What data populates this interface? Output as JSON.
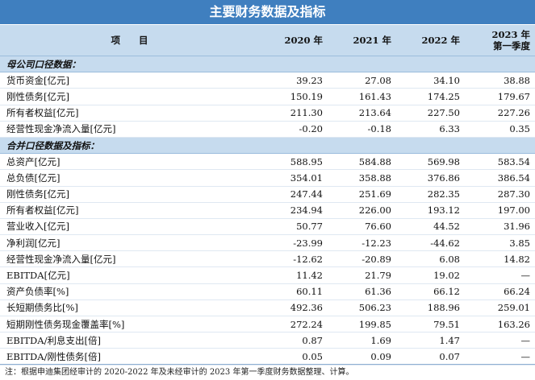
{
  "title": "主要财务数据及指标",
  "header": {
    "item": "项　　目",
    "cols": [
      "2020 年",
      "2021 年",
      "2022 年"
    ],
    "col4_line1": "2023 年",
    "col4_line2": "第一季度"
  },
  "section1": {
    "label": "母公司口径数据：",
    "rows": [
      {
        "label": "货币资金[亿元]",
        "v": [
          "39.23",
          "27.08",
          "34.10",
          "38.88"
        ]
      },
      {
        "label": "刚性债务[亿元]",
        "v": [
          "150.19",
          "161.43",
          "174.25",
          "179.67"
        ]
      },
      {
        "label": "所有者权益[亿元]",
        "v": [
          "211.30",
          "213.64",
          "227.50",
          "227.26"
        ]
      },
      {
        "label": "经营性现金净流入量[亿元]",
        "v": [
          "-0.20",
          "-0.18",
          "6.33",
          "0.35"
        ]
      }
    ]
  },
  "section2": {
    "label": "合并口径数据及指标：",
    "rows": [
      {
        "label": "总资产[亿元]",
        "v": [
          "588.95",
          "584.88",
          "569.98",
          "583.54"
        ]
      },
      {
        "label": "总负债[亿元]",
        "v": [
          "354.01",
          "358.88",
          "376.86",
          "386.54"
        ]
      },
      {
        "label": "刚性债务[亿元]",
        "v": [
          "247.44",
          "251.69",
          "282.35",
          "287.30"
        ]
      },
      {
        "label": "所有者权益[亿元]",
        "v": [
          "234.94",
          "226.00",
          "193.12",
          "197.00"
        ]
      },
      {
        "label": "营业收入[亿元]",
        "v": [
          "50.77",
          "76.60",
          "44.52",
          "31.96"
        ]
      },
      {
        "label": "净利润[亿元]",
        "v": [
          "-23.99",
          "-12.23",
          "-44.62",
          "3.85"
        ]
      },
      {
        "label": "经营性现金净流入量[亿元]",
        "v": [
          "-12.62",
          "-20.89",
          "6.08",
          "14.82"
        ]
      },
      {
        "label": "EBITDA[亿元]",
        "v": [
          "11.42",
          "21.79",
          "19.02",
          "—"
        ]
      }
    ]
  },
  "section3": {
    "rows": [
      {
        "label": "资产负债率[%]",
        "v": [
          "60.11",
          "61.36",
          "66.12",
          "66.24"
        ]
      },
      {
        "label": "长短期债务比[%]",
        "v": [
          "492.36",
          "506.23",
          "188.96",
          "259.01"
        ]
      },
      {
        "label": "短期刚性债务现金覆盖率[%]",
        "v": [
          "272.24",
          "199.85",
          "79.51",
          "163.26"
        ]
      },
      {
        "label": "EBITDA/利息支出[倍]",
        "v": [
          "0.87",
          "1.69",
          "1.47",
          "—"
        ]
      },
      {
        "label": "EBITDA/刚性债务[倍]",
        "v": [
          "0.05",
          "0.09",
          "0.07",
          "—"
        ]
      }
    ]
  },
  "note": "注：根据申迪集团经审计的 2020-2022 年及未经审计的 2023 年第一季度财务数据整理、计算。"
}
